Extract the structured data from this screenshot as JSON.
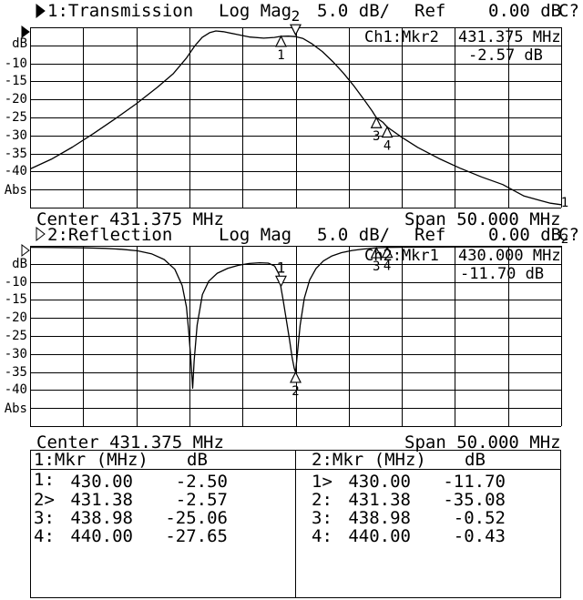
{
  "screen": {
    "bg": "#ffffff",
    "fg": "#000000"
  },
  "ch1": {
    "title": "1:Transmission",
    "meas": "Log Mag",
    "scale": "5.0 dB/",
    "ref_label": "Ref",
    "ref_value": "0.00 dB",
    "cal": "C?",
    "readout_ch": "Ch1:Mkr2",
    "readout_freq": "431.375 MHz",
    "readout_val": "-2.57 dB",
    "center": "Center 431.375 MHz",
    "span": "Span 50.000 MHz",
    "y_unit": "dB",
    "y_bottom": "Abs",
    "ticks": [
      "-10",
      "-15",
      "-20",
      "-25",
      "-30",
      "-35",
      "-40"
    ]
  },
  "ch2": {
    "title": "2:Reflection",
    "meas": "Log Mag",
    "scale": "5.0 dB/",
    "ref_label": "Ref",
    "ref_value": "0.00 dB",
    "cal": "C?",
    "readout_ch": "Ch2:Mkr1",
    "readout_freq": "430.000 MHz",
    "readout_val": "-11.70 dB",
    "center": "Center 431.375 MHz",
    "span": "Span 50.000 MHz",
    "y_unit": "dB",
    "y_bottom": "Abs",
    "ticks": [
      "-10",
      "-15",
      "-20",
      "-25",
      "-30",
      "-35",
      "-40"
    ]
  },
  "table": {
    "p1": {
      "head": "1:Mkr (MHz)",
      "unit": "dB",
      "rows": [
        {
          "m": "1:",
          "freq": "430.00",
          "val": "-2.50"
        },
        {
          "m": "2>",
          "freq": "431.38",
          "val": "-2.57"
        },
        {
          "m": "3:",
          "freq": "438.98",
          "val": "-25.06"
        },
        {
          "m": "4:",
          "freq": "440.00",
          "val": "-27.65"
        }
      ]
    },
    "p2": {
      "head": "2:Mkr (MHz)",
      "unit": "dB",
      "rows": [
        {
          "m": "1>",
          "freq": "430.00",
          "val": "-11.70"
        },
        {
          "m": "2:",
          "freq": "431.38",
          "val": "-35.08"
        },
        {
          "m": "3:",
          "freq": "438.98",
          "val": "-0.52"
        },
        {
          "m": "4:",
          "freq": "440.00",
          "val": "-0.43"
        }
      ]
    }
  },
  "chart_data": [
    {
      "type": "line",
      "title": "1:Transmission",
      "ylabel": "dB",
      "active": true,
      "trace_label": "1",
      "center_mhz": 431.375,
      "span_mhz": 50.0,
      "x_start_mhz": 406.375,
      "x_stop_mhz": 456.375,
      "ref_db": 0.0,
      "scale_db_per_div": 5.0,
      "ylim": [
        -50,
        0
      ],
      "grid_divisions": [
        10,
        10
      ],
      "markers": [
        {
          "n": 1,
          "mhz": 430.0,
          "db": -2.5,
          "style": "up"
        },
        {
          "n": 2,
          "mhz": 431.375,
          "db": -2.57,
          "style": "down",
          "active": true
        },
        {
          "n": 3,
          "mhz": 438.98,
          "db": -25.06,
          "style": "up"
        },
        {
          "n": 4,
          "mhz": 440.0,
          "db": -27.65,
          "style": "up"
        }
      ],
      "points": [
        [
          406.375,
          -39.3
        ],
        [
          408.375,
          -36.6
        ],
        [
          410.375,
          -33.2
        ],
        [
          412.375,
          -29.4
        ],
        [
          414.375,
          -25.4
        ],
        [
          416.375,
          -21.2
        ],
        [
          418.375,
          -16.6
        ],
        [
          419.875,
          -12.8
        ],
        [
          421.075,
          -8.6
        ],
        [
          421.875,
          -5.2
        ],
        [
          422.575,
          -2.8
        ],
        [
          423.275,
          -1.5
        ],
        [
          423.875,
          -1.0
        ],
        [
          424.575,
          -1.2
        ],
        [
          425.875,
          -2.0
        ],
        [
          427.075,
          -2.7
        ],
        [
          428.375,
          -3.0
        ],
        [
          429.375,
          -2.8
        ],
        [
          430.0,
          -2.5
        ],
        [
          430.7,
          -2.45
        ],
        [
          431.375,
          -2.57
        ],
        [
          432.075,
          -3.1
        ],
        [
          432.875,
          -4.5
        ],
        [
          433.875,
          -6.7
        ],
        [
          434.875,
          -9.5
        ],
        [
          435.875,
          -12.7
        ],
        [
          436.875,
          -16.3
        ],
        [
          437.875,
          -20.3
        ],
        [
          438.575,
          -23.2
        ],
        [
          438.975,
          -25.06
        ],
        [
          439.575,
          -26.3
        ],
        [
          440.0,
          -27.65
        ],
        [
          441.375,
          -30.5
        ],
        [
          442.875,
          -33.3
        ],
        [
          444.875,
          -36.4
        ],
        [
          446.875,
          -39.1
        ],
        [
          448.875,
          -41.5
        ],
        [
          450.875,
          -43.6
        ],
        [
          452.875,
          -46.8
        ],
        [
          454.375,
          -48.0
        ],
        [
          455.375,
          -48.8
        ],
        [
          456.375,
          -49.2
        ]
      ]
    },
    {
      "type": "line",
      "title": "2:Reflection",
      "ylabel": "dB",
      "active": false,
      "trace_label": "2",
      "center_mhz": 431.375,
      "span_mhz": 50.0,
      "x_start_mhz": 406.375,
      "x_stop_mhz": 456.375,
      "ref_db": 0.0,
      "scale_db_per_div": 5.0,
      "ylim": [
        -50,
        0
      ],
      "grid_divisions": [
        10,
        10
      ],
      "markers": [
        {
          "n": 1,
          "mhz": 430.0,
          "db": -11.7,
          "style": "down",
          "active": true
        },
        {
          "n": 2,
          "mhz": 431.375,
          "db": -35.08,
          "style": "up"
        },
        {
          "n": 3,
          "mhz": 438.98,
          "db": -0.52,
          "style": "up"
        },
        {
          "n": 4,
          "mhz": 440.0,
          "db": -0.43,
          "style": "up"
        }
      ],
      "points": [
        [
          406.375,
          -0.4
        ],
        [
          409.0,
          -0.45
        ],
        [
          411.5,
          -0.55
        ],
        [
          413.5,
          -0.7
        ],
        [
          415.0,
          -0.95
        ],
        [
          416.5,
          -1.4
        ],
        [
          417.8,
          -2.2
        ],
        [
          419.0,
          -3.8
        ],
        [
          420.0,
          -6.5
        ],
        [
          420.7,
          -11.0
        ],
        [
          421.1,
          -17.0
        ],
        [
          421.35,
          -25.0
        ],
        [
          421.55,
          -33.0
        ],
        [
          421.68,
          -39.5
        ],
        [
          421.82,
          -32.0
        ],
        [
          422.1,
          -22.0
        ],
        [
          422.6,
          -13.5
        ],
        [
          423.2,
          -9.8
        ],
        [
          424.0,
          -7.6
        ],
        [
          425.0,
          -6.2
        ],
        [
          426.0,
          -5.4
        ],
        [
          427.0,
          -4.9
        ],
        [
          428.0,
          -4.7
        ],
        [
          428.8,
          -4.8
        ],
        [
          429.4,
          -5.6
        ],
        [
          429.8,
          -7.8
        ],
        [
          429.9,
          -9.3
        ],
        [
          430.0,
          -11.7
        ],
        [
          430.2,
          -15.0
        ],
        [
          430.5,
          -20.5
        ],
        [
          430.8,
          -26.0
        ],
        [
          431.05,
          -31.0
        ],
        [
          431.25,
          -34.0
        ],
        [
          431.375,
          -35.08
        ],
        [
          431.5,
          -31.0
        ],
        [
          431.8,
          -22.0
        ],
        [
          432.2,
          -14.5
        ],
        [
          432.7,
          -9.5
        ],
        [
          433.3,
          -6.3
        ],
        [
          434.0,
          -4.2
        ],
        [
          434.8,
          -2.8
        ],
        [
          435.7,
          -1.9
        ],
        [
          436.7,
          -1.3
        ],
        [
          437.7,
          -0.9
        ],
        [
          438.975,
          -0.52
        ],
        [
          440.0,
          -0.43
        ],
        [
          442.0,
          -0.38
        ],
        [
          445.0,
          -0.33
        ],
        [
          448.0,
          -0.3
        ],
        [
          452.0,
          -0.28
        ],
        [
          456.375,
          -0.28
        ]
      ]
    }
  ]
}
